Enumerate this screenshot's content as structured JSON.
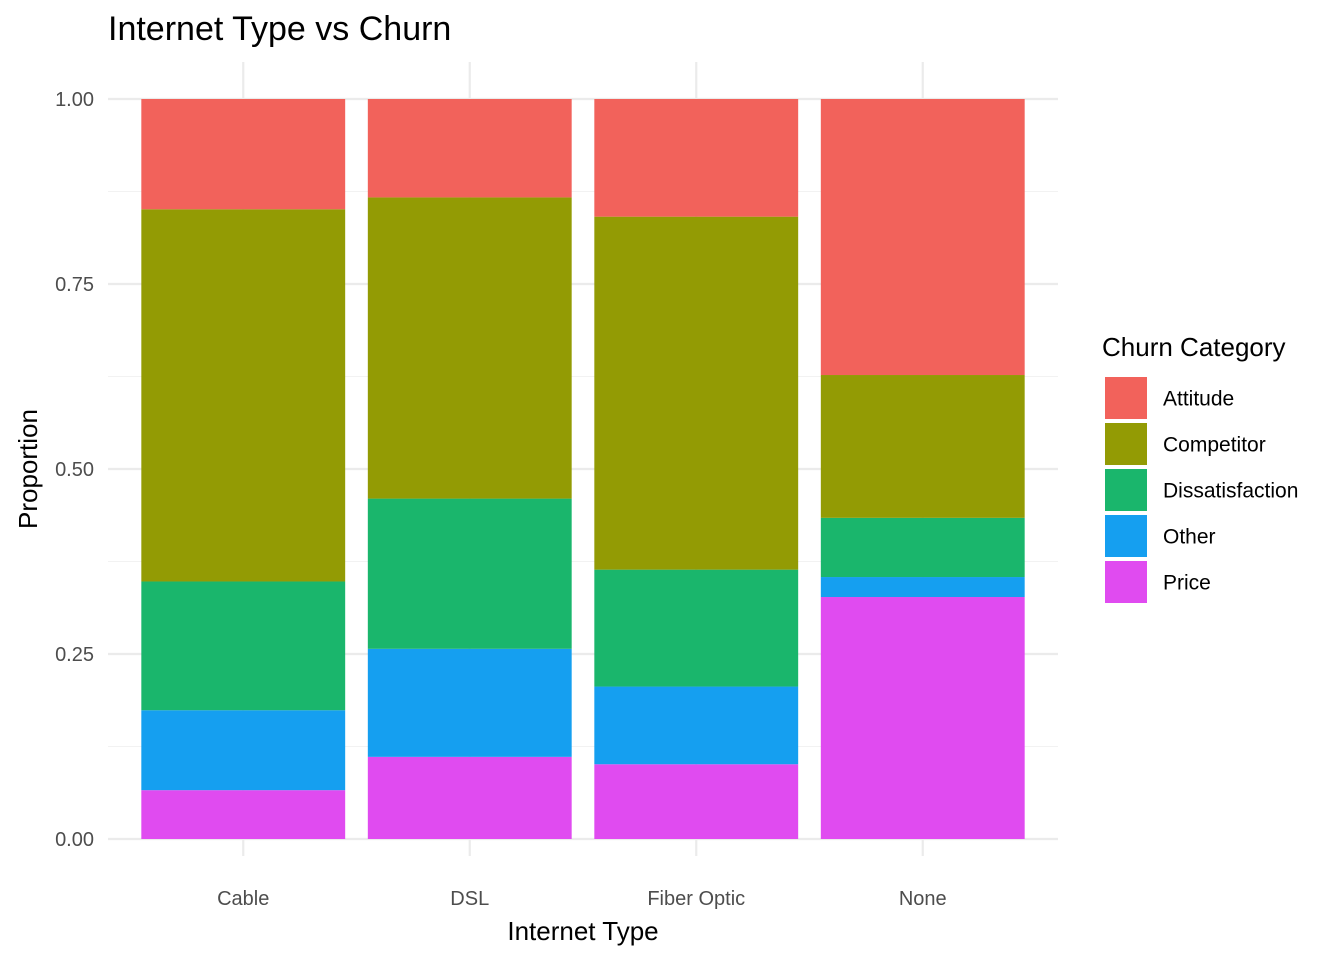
{
  "chart_data": {
    "type": "bar",
    "stacked": true,
    "title": "Internet Type vs Churn",
    "xlabel": "Internet Type",
    "ylabel": "Proportion",
    "ylim": [
      0,
      1
    ],
    "yticks": [
      "0.00",
      "0.25",
      "0.50",
      "0.75",
      "1.00"
    ],
    "categories": [
      "Cable",
      "DSL",
      "Fiber Optic",
      "None"
    ],
    "legend": {
      "title": "Churn Category",
      "position": "right"
    },
    "series": [
      {
        "name": "Price",
        "color": "#e04bf0",
        "values": [
          0.066,
          0.111,
          0.101,
          0.327
        ]
      },
      {
        "name": "Other",
        "color": "#159ff0",
        "values": [
          0.108,
          0.146,
          0.105,
          0.027
        ]
      },
      {
        "name": "Dissatisfaction",
        "color": "#1ab66c",
        "values": [
          0.174,
          0.203,
          0.158,
          0.08
        ]
      },
      {
        "name": "Competitor",
        "color": "#939b04",
        "values": [
          0.503,
          0.407,
          0.477,
          0.193
        ]
      },
      {
        "name": "Attitude",
        "color": "#f2625b",
        "values": [
          0.149,
          0.133,
          0.159,
          0.373
        ]
      }
    ],
    "legend_order": [
      "Attitude",
      "Competitor",
      "Dissatisfaction",
      "Other",
      "Price"
    ],
    "grid": true
  }
}
